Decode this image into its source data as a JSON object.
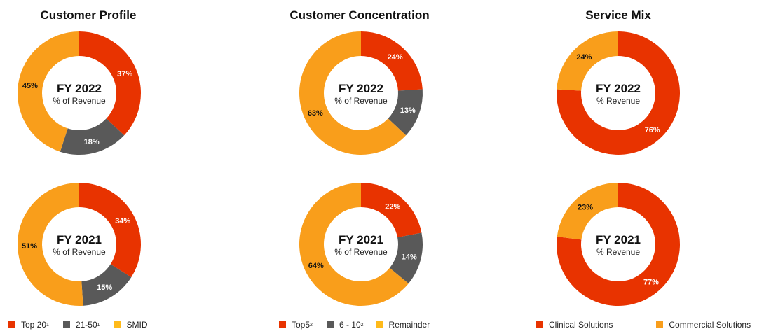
{
  "colors": {
    "red": "#E83300",
    "gray": "#595959",
    "orange": "#F99E1B",
    "yellow": "#FFBA1A"
  },
  "chart_data": [
    {
      "type": "pie",
      "title": "Customer Profile",
      "categories": [
        "Top 20",
        "21-50",
        "SMID"
      ],
      "series": [
        {
          "name": "FY 2022",
          "subtitle": "% of Revenue",
          "values": [
            37,
            18,
            45
          ]
        },
        {
          "name": "FY 2021",
          "subtitle": "% of Revenue",
          "values": [
            34,
            15,
            51
          ]
        }
      ],
      "legend": [
        {
          "label": "Top 20",
          "sup": "1",
          "color": "red"
        },
        {
          "label": "21-50",
          "sup": "1",
          "color": "gray"
        },
        {
          "label": "SMID",
          "sup": "",
          "color": "yellow"
        }
      ]
    },
    {
      "type": "pie",
      "title": "Customer Concentration",
      "categories": [
        "Top5",
        "6 - 10",
        "Remainder"
      ],
      "series": [
        {
          "name": "FY 2022",
          "subtitle": "% of Revenue",
          "values": [
            24,
            13,
            63
          ]
        },
        {
          "name": "FY 2021",
          "subtitle": "% of Revenue",
          "values": [
            22,
            14,
            64
          ]
        }
      ],
      "legend": [
        {
          "label": "Top5",
          "sup": "2",
          "color": "red"
        },
        {
          "label": "6 - 10",
          "sup": "2",
          "color": "gray"
        },
        {
          "label": "Remainder",
          "sup": "",
          "color": "yellow"
        }
      ]
    },
    {
      "type": "pie",
      "title": "Service Mix",
      "categories": [
        "Clinical Solutions",
        "Commercial Solutions"
      ],
      "series": [
        {
          "name": "FY 2022",
          "subtitle": "% Revenue",
          "values": [
            76,
            24
          ]
        },
        {
          "name": "FY 2021",
          "subtitle": "% Revenue",
          "values": [
            77,
            23
          ]
        }
      ],
      "legend": [
        {
          "label": "Clinical Solutions",
          "sup": "",
          "color": "red"
        },
        {
          "label": "Commercial Solutions",
          "sup": "",
          "color": "orange"
        }
      ]
    }
  ]
}
